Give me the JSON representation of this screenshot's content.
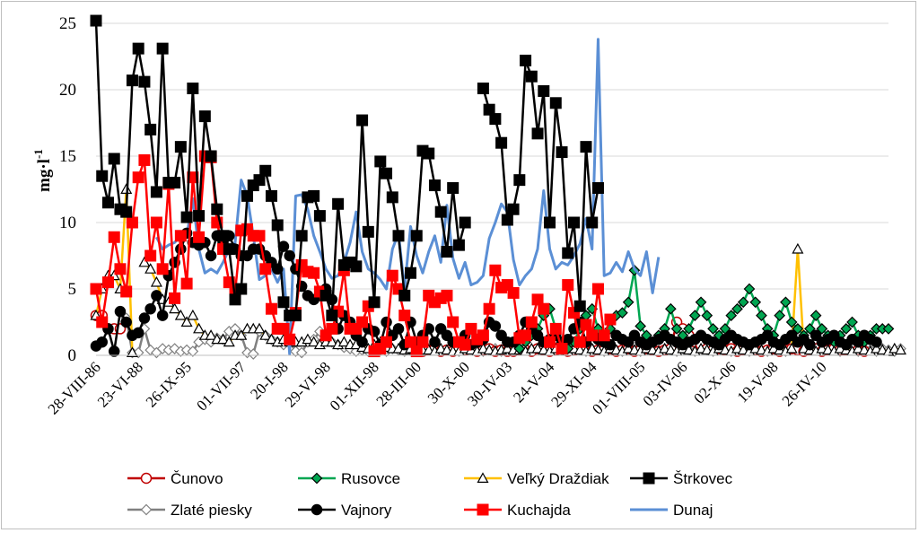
{
  "chart_data": {
    "type": "line",
    "ylabel": "mg·l",
    "ylabel_sup": "-1",
    "ylim": [
      0,
      25
    ],
    "yticks": [
      0,
      5,
      10,
      15,
      20,
      25
    ],
    "grid": "horizontal",
    "legend_position": "bottom",
    "n_points": 132,
    "x_tick_labels": [
      "28-VIII-86",
      "23-VI-88",
      "26-IX-95",
      "01-VII-97",
      "20-I-98",
      "29-VI-98",
      "01-XII-98",
      "28-III-00",
      "30-X-00",
      "30-IV-03",
      "24-V-04",
      "29-XI-04",
      "01-VIII-05",
      "03-IV-06",
      "02-X-06",
      "19-V-08",
      "26-IV-10"
    ],
    "x_tick_index": [
      0,
      7,
      15,
      24,
      31,
      38,
      46,
      53,
      61,
      68,
      75,
      82,
      90,
      97,
      105,
      112,
      120
    ],
    "series": [
      {
        "name": "Čunovo",
        "color": "#c00000",
        "marker": "circle",
        "values": [
          3,
          3,
          2,
          2,
          2,
          null,
          null,
          null,
          null,
          null,
          null,
          null,
          null,
          null,
          null,
          null,
          null,
          null,
          null,
          null,
          null,
          null,
          null,
          null,
          null,
          null,
          null,
          null,
          null,
          null,
          null,
          null,
          null,
          null,
          null,
          null,
          null,
          null,
          null,
          null,
          null,
          null,
          null,
          null,
          null,
          null,
          null,
          null,
          null,
          null,
          null,
          null,
          0.5,
          0.5,
          0.3,
          0.4,
          0.5,
          0.3,
          0.4,
          0.3,
          0.5,
          0.4,
          0.5,
          0.3,
          0.4,
          0.5,
          0.3,
          0.4,
          0.3,
          0.3,
          0.4,
          0.4,
          0.3,
          0.5,
          0.4,
          0.3,
          0.4,
          0.5,
          0.3,
          0.4,
          0.5,
          0.4,
          0.3,
          0.4,
          0.4,
          0.5,
          0.3,
          0.4,
          0.5,
          0.3,
          0.4,
          0.5,
          0.4,
          0.3,
          0.4,
          0.5,
          2.5,
          2,
          1.5,
          1,
          0.8,
          0.5,
          0.4,
          0.5,
          0.4,
          0.5,
          0.3,
          0.4,
          0.5,
          0.4,
          0.3,
          0.4,
          0.5,
          0.3,
          0.4,
          0.5,
          0.4,
          0.3,
          0.4,
          0.5,
          0.3,
          0.4,
          0.5,
          0.4,
          0.4,
          0.5,
          0.4,
          0.3
        ]
      },
      {
        "name": "Rusovce",
        "color": "#00a651",
        "marker": "diamond",
        "values": [
          null,
          null,
          null,
          null,
          null,
          null,
          null,
          null,
          null,
          null,
          null,
          null,
          null,
          null,
          null,
          null,
          null,
          null,
          null,
          null,
          null,
          null,
          null,
          null,
          null,
          null,
          null,
          null,
          null,
          null,
          null,
          null,
          null,
          null,
          null,
          null,
          null,
          null,
          null,
          null,
          null,
          null,
          null,
          null,
          null,
          null,
          null,
          null,
          null,
          null,
          null,
          null,
          null,
          null,
          null,
          null,
          null,
          null,
          null,
          null,
          null,
          null,
          null,
          null,
          null,
          null,
          null,
          null,
          null,
          null,
          0.5,
          1,
          1.5,
          2,
          3,
          3.5,
          2,
          1,
          0.5,
          1,
          2,
          3,
          3.5,
          2,
          1.5,
          2,
          3,
          3.2,
          4,
          6.4,
          2.2,
          1.5,
          1,
          1.5,
          2,
          3.5,
          2,
          1.5,
          2,
          3,
          4,
          3,
          2,
          1.5,
          2,
          3,
          3.5,
          4,
          5,
          4,
          3,
          2,
          1.5,
          3,
          4,
          2.5,
          2,
          1.5,
          2,
          3,
          2,
          1.5,
          1,
          1.5,
          2,
          2.5,
          1.5,
          1,
          1.5,
          2,
          2,
          2
        ]
      },
      {
        "name": "Veľký Draždiak",
        "color": "#ffc000",
        "marker": "triangle",
        "values": [
          3,
          5,
          6,
          6,
          5,
          12.5,
          0.2,
          null,
          7,
          6.5,
          5.5,
          4.2,
          4,
          3.5,
          3,
          2.5,
          3,
          2,
          1.5,
          1.5,
          1.2,
          1.2,
          1,
          1.5,
          1.5,
          2,
          2,
          2,
          1.5,
          1.2,
          1,
          1.2,
          1,
          1,
          1,
          1.2,
          1,
          0.8,
          1,
          1,
          0.8,
          1,
          0.8,
          0.8,
          0.6,
          0.5,
          0.8,
          1,
          0.6,
          0.5,
          0.5,
          0.4,
          0.5,
          0.3,
          0.4,
          0.4,
          0.3,
          0.5,
          0.4,
          0.3,
          0.3,
          0.5,
          0.4,
          0.3,
          0.5,
          0.4,
          0.3,
          0.4,
          0.5,
          0.4,
          0.4,
          0.3,
          0.5,
          0.5,
          0.4,
          0.3,
          0.5,
          0.4,
          0.3,
          0.5,
          0.4,
          0.3,
          0.5,
          0.4,
          0.3,
          0.5,
          0.4,
          0.3,
          0.5,
          0.4,
          0.3,
          0.5,
          0.4,
          0.3,
          0.5,
          0.4,
          0.3,
          0.5,
          0.4,
          0.3,
          0.5,
          0.4,
          0.3,
          0.5,
          0.4,
          0.3,
          0.5,
          0.4,
          0.3,
          0.5,
          0.4,
          0.3,
          0.5,
          0.4,
          0.3,
          0.5,
          8,
          0.5,
          0.4,
          0.3,
          0.5,
          0.4,
          0.3,
          0.5,
          0.4,
          0.3,
          0.5,
          0.4,
          0.3,
          0.5,
          0.4,
          0.3,
          0.5,
          0.4
        ]
      },
      {
        "name": "Štrkovec",
        "color": "#000000",
        "marker": "square",
        "values": [
          27,
          13.5,
          11.5,
          14.8,
          11,
          10.8,
          20.7,
          23.1,
          20.6,
          17,
          12.3,
          23.1,
          13,
          13,
          15.7,
          10.4,
          20.1,
          10.5,
          18,
          15,
          11,
          9,
          8,
          4.2,
          5,
          12,
          12.8,
          13.2,
          13.9,
          12,
          9.8,
          4,
          3,
          3,
          9,
          11.9,
          12,
          10.5,
          4.5,
          3,
          11.4,
          6.8,
          7,
          6.7,
          17.7,
          9.3,
          4,
          14.6,
          13.7,
          11.9,
          9,
          4.5,
          6.2,
          9,
          15.4,
          15.2,
          12.8,
          10.8,
          7.8,
          12.6,
          8.3,
          10,
          null,
          null,
          20.1,
          18.5,
          17.8,
          16,
          10.2,
          11,
          13.2,
          22.2,
          21,
          16.7,
          19.9,
          10,
          19,
          15.3,
          7.7,
          10,
          3.7,
          15.7,
          10,
          12.6
        ]
      },
      {
        "name": "Zlaté piesky",
        "color": "#808080",
        "marker": "diamond",
        "values": [
          null,
          null,
          null,
          null,
          null,
          2.8,
          0.2,
          0.2,
          2,
          0.4,
          0.2,
          0.5,
          0.4,
          0.5,
          0.3,
          0.4,
          0.3,
          1,
          1.2,
          1,
          1.3,
          1.2,
          1.8,
          2,
          1.5,
          0.2,
          0.1,
          1.8,
          1.5,
          1.2,
          1,
          0.8,
          1,
          0.3,
          0.2,
          1,
          1.2,
          1.8,
          1.5,
          1,
          0.8,
          0.6,
          0.5,
          0.3,
          0.4,
          0.3,
          0.5,
          0.4,
          0.3,
          0.5,
          0.4,
          0.3,
          0.4,
          0.4,
          0.3,
          0.5,
          0.4,
          0.3,
          0.4,
          0.5,
          0.3,
          0.4,
          0.5,
          0.4,
          0.3,
          0.4,
          0.5,
          0.3,
          0.4,
          0.3,
          0.5,
          0.4,
          0.3,
          0.5,
          0.4,
          0.3,
          0.5,
          0.4,
          0.3,
          0.5,
          0.4,
          0.3,
          0.5,
          0.4,
          0.3,
          0.5,
          0.4,
          0.3,
          0.5,
          0.4,
          0.3,
          0.5,
          0.4,
          0.3,
          0.5,
          0.4,
          0.3,
          0.5,
          0.4,
          0.3,
          0.5,
          0.4,
          0.3,
          0.5,
          0.4,
          0.3,
          0.5,
          0.4,
          0.3,
          0.5,
          0.4,
          0.3,
          0.5,
          0.4,
          0.3,
          0.5,
          0.4,
          0.3,
          0.5,
          0.4,
          0.3,
          0.5,
          0.4,
          0.3,
          0.5,
          0.4,
          0.3,
          0.5,
          0.4,
          0.3,
          0.5,
          0.4,
          0.3,
          0.5
        ]
      },
      {
        "name": "Vajnory",
        "color": "#000000",
        "marker": "circle",
        "values": [
          0.7,
          1,
          2,
          0.3,
          3.3,
          2.5,
          1.5,
          1.7,
          2.8,
          3.5,
          4.5,
          3,
          6,
          7,
          8,
          9.2,
          8.5,
          8.3,
          8.5,
          7.5,
          9,
          8.5,
          9,
          8,
          7.5,
          7.5,
          8,
          8,
          7.5,
          7,
          6.5,
          8.2,
          7.5,
          6.5,
          5.2,
          4.5,
          4.2,
          4.5,
          5,
          4.2,
          2,
          3,
          2.5,
          1.5,
          1,
          2,
          1.8,
          0.8,
          2.5,
          1.5,
          2,
          0.8,
          2.5,
          1,
          1.5,
          2,
          1,
          2,
          1.5,
          1,
          1,
          1.5,
          0.8,
          1,
          1.2,
          2.5,
          2.2,
          1.5,
          1,
          1,
          1.5,
          2.5,
          2,
          1.5,
          1,
          1.2,
          1.5,
          1,
          1.2,
          2,
          2.5,
          1,
          1.5,
          1.2,
          1,
          0.8,
          1.5,
          1.2,
          1,
          1.5,
          1,
          0.8,
          1,
          1.2,
          1.5,
          1.2,
          1,
          0.8,
          1,
          1.2,
          1.5,
          1.2,
          1,
          0.8,
          1.2,
          1.5,
          1.2,
          1,
          0.8,
          1,
          1.2,
          1.5,
          1,
          0.8,
          1.2,
          1.5,
          1,
          1.2,
          0.8,
          1.5,
          1,
          1.2,
          1.5,
          1,
          0.8,
          1.2,
          1,
          1.5,
          1.2,
          1
        ]
      },
      {
        "name": "Kuchajda",
        "color": "#ff0000",
        "marker": "square",
        "values": [
          5,
          2.5,
          5.5,
          8.9,
          6.5,
          4.8,
          10,
          13.4,
          14.7,
          7.5,
          10,
          6.5,
          12.9,
          4.3,
          9,
          5.4,
          13.4,
          8.9,
          15,
          14.9,
          10,
          8,
          5.5,
          4.8,
          9.4,
          9.5,
          9,
          9,
          6.5,
          3.5,
          2,
          2,
          1.2,
          3.2,
          6.8,
          6.3,
          6.2,
          4.8,
          1.5,
          2,
          3.3,
          6.4,
          2,
          2,
          2.5,
          3.7,
          0.3,
          0.5,
          1,
          6,
          5,
          3,
          1,
          0.3,
          1,
          4.5,
          4,
          4.3,
          4.5,
          2.5,
          1,
          0.8,
          2,
          1.2,
          1.5,
          3.5,
          6.4,
          5.1,
          5.3,
          4.7,
          1.3,
          1.5,
          2.5,
          4.2,
          3.5,
          1,
          2,
          0.5,
          5.3,
          3.2,
          1,
          2.3,
          1.5,
          5,
          1.5,
          2.7
        ]
      },
      {
        "name": "Dunaj",
        "color": "#5b8fd5",
        "marker": "none",
        "values": [
          null,
          null,
          null,
          null,
          null,
          null,
          null,
          null,
          null,
          null,
          8.9,
          8,
          8.3,
          8.5,
          9,
          9,
          11.8,
          8,
          6.2,
          6.5,
          6.2,
          7,
          8,
          8.5,
          13.2,
          12,
          9,
          5.7,
          6,
          6.5,
          5.5,
          6.5,
          0.1,
          12,
          12.1,
          11,
          9,
          7.8,
          6.5,
          5.8,
          6,
          7,
          8.5,
          10.8,
          7.8,
          6.5,
          6.2,
          5.7,
          5,
          8,
          9.2,
          5,
          9.7,
          7.5,
          6.2,
          7.8,
          9,
          7,
          11.3,
          7.3,
          5.8,
          7,
          5.3,
          5.5,
          6,
          8.8,
          10,
          11.4,
          10.8,
          7.2,
          5.3,
          6,
          6.5,
          8,
          12.4,
          8,
          6.5,
          7,
          6.8,
          7.5,
          8.4,
          10.3,
          8,
          23.8,
          6,
          6.2,
          7,
          6.3,
          7.8,
          6.5,
          6,
          7.8,
          4.7,
          7.4
        ]
      }
    ],
    "legend": [
      [
        "Čunovo",
        "Rusovce",
        "Veľký Draždiak",
        "Štrkovec"
      ],
      [
        "Zlaté piesky",
        "Vajnory",
        "Kuchajda",
        "Dunaj"
      ]
    ]
  }
}
